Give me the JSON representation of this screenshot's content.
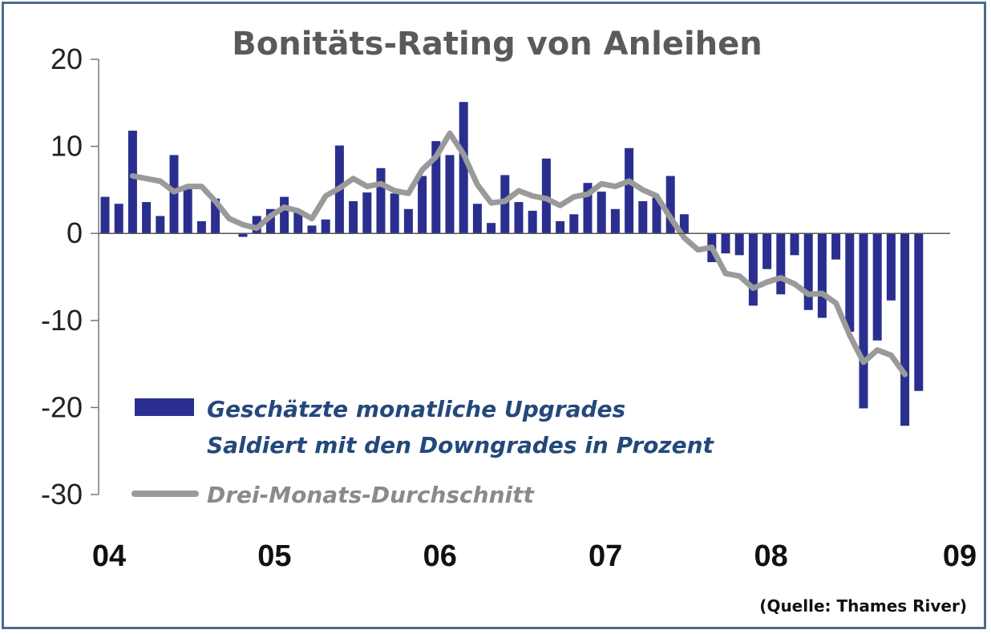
{
  "chart_data": {
    "type": "bar",
    "title": "Bonitäts-Rating von Anleihen",
    "ylim": [
      -30,
      20
    ],
    "yticks": [
      "20",
      "10",
      "0",
      "-10",
      "-20",
      "-30"
    ],
    "x_tick_labels": [
      "04",
      "05",
      "06",
      "07",
      "08",
      "09"
    ],
    "grid": false,
    "series": [
      {
        "name": "Geschätzte monatliche Upgrades Saldiert mit den Downgrades in Prozent",
        "type": "bar",
        "color": "#2a2f8f",
        "values": [
          4.2,
          3.4,
          11.8,
          3.6,
          2.0,
          9.0,
          5.2,
          1.4,
          4.0,
          0,
          -0.4,
          2.0,
          2.8,
          4.2,
          2.6,
          0.9,
          1.6,
          10.1,
          3.7,
          4.7,
          7.5,
          4.6,
          2.8,
          6.6,
          10.6,
          9.0,
          15.1,
          3.4,
          1.2,
          6.7,
          3.6,
          2.6,
          8.6,
          1.4,
          2.2,
          5.8,
          4.8,
          2.8,
          9.8,
          3.7,
          4.1,
          6.6,
          2.2,
          0,
          -3.3,
          -2.3,
          -2.5,
          -8.3,
          -4.1,
          -7.0,
          -2.5,
          -8.8,
          -9.7,
          -3.0,
          -11.3,
          -20.1,
          -12.3,
          -7.7,
          -22.1,
          -18.1
        ]
      },
      {
        "name": "Drei-Monats-Durchschnitt",
        "type": "line",
        "color": "#9a9a9a",
        "start_index": 2,
        "values": [
          6.6,
          6.3,
          6.0,
          4.8,
          5.4,
          5.4,
          3.7,
          1.7,
          1.0,
          0.6,
          2.0,
          3.0,
          2.6,
          1.7,
          4.3,
          5.2,
          6.3,
          5.4,
          5.7,
          4.9,
          4.6,
          7.3,
          8.8,
          11.5,
          9.1,
          5.6,
          3.5,
          3.7,
          4.9,
          4.3,
          4.0,
          3.2,
          4.2,
          4.5,
          5.7,
          5.4,
          6.0,
          5.0,
          4.3,
          1.8,
          -0.5,
          -1.9,
          -1.6,
          -4.6,
          -4.9,
          -6.3,
          -5.6,
          -5.1,
          -5.8,
          -7.0,
          -6.9,
          -8.0,
          -11.7,
          -14.8,
          -13.4,
          -14.0,
          -16.2
        ]
      }
    ],
    "legend_placement": "bottom-left",
    "annotations": [
      "(Quelle: Thames River)"
    ]
  },
  "legend": {
    "bar_line1": "Geschätzte monatliche Upgrades",
    "bar_line2": "Saldiert mit den Downgrades in Prozent",
    "line": "Drei-Monats-Durchschnitt"
  },
  "source": "(Quelle: Thames River)"
}
